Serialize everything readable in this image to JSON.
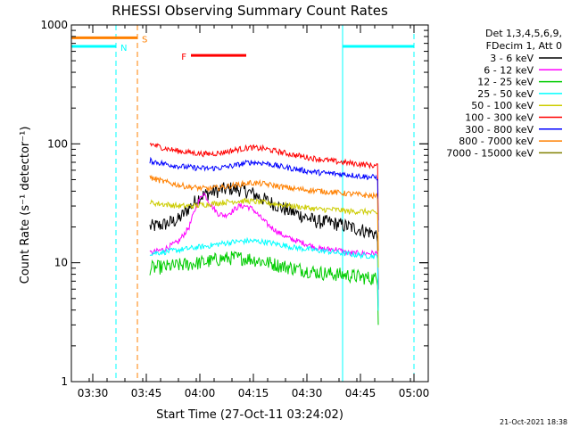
{
  "chart_data": {
    "type": "line",
    "title": "RHESSI Observing Summary Count Rates",
    "xlabel": "Start Time (27-Oct-11 03:24:02)",
    "ylabel": "Count Rate (s⁻¹ detector⁻¹)",
    "x_unit": "minutes after 03:24:02",
    "xlim": [
      0,
      100
    ],
    "ylim": [
      1,
      1000
    ],
    "yscale": "log",
    "grid": false,
    "legend_position": "right",
    "legend_header": [
      "Det 1,3,4,5,6,9,",
      "FDecim 1, Att 0"
    ],
    "x_ticks": [
      {
        "x": 6,
        "label": "03:30"
      },
      {
        "x": 21,
        "label": "03:45"
      },
      {
        "x": 36,
        "label": "04:00"
      },
      {
        "x": 51,
        "label": "04:15"
      },
      {
        "x": 66,
        "label": "04:30"
      },
      {
        "x": 81,
        "label": "04:45"
      },
      {
        "x": 96,
        "label": "05:00"
      }
    ],
    "y_ticks": [
      {
        "y": 1,
        "label": "1"
      },
      {
        "y": 10,
        "label": "10"
      },
      {
        "y": 100,
        "label": "100"
      },
      {
        "y": 1000,
        "label": "1000"
      }
    ],
    "series": [
      {
        "name": "3 - 6 keV",
        "color": "#000000",
        "points": [
          [
            22,
            20
          ],
          [
            26,
            21
          ],
          [
            30,
            23
          ],
          [
            33,
            29
          ],
          [
            36,
            36
          ],
          [
            39,
            39
          ],
          [
            42,
            41
          ],
          [
            45,
            42
          ],
          [
            48,
            41
          ],
          [
            51,
            38
          ],
          [
            54,
            34
          ],
          [
            57,
            31
          ],
          [
            60,
            28
          ],
          [
            63,
            26
          ],
          [
            66,
            24
          ],
          [
            69,
            22
          ],
          [
            72,
            22
          ],
          [
            75,
            21
          ],
          [
            78,
            20
          ],
          [
            81,
            19
          ],
          [
            84,
            18
          ],
          [
            86,
            17
          ]
        ]
      },
      {
        "name": "6 - 12 keV",
        "color": "#ff00ff",
        "points": [
          [
            22,
            12
          ],
          [
            26,
            13
          ],
          [
            30,
            15
          ],
          [
            33,
            20
          ],
          [
            35,
            30
          ],
          [
            37,
            39
          ],
          [
            39,
            31
          ],
          [
            41,
            26
          ],
          [
            43,
            25
          ],
          [
            45,
            27
          ],
          [
            47,
            30
          ],
          [
            49,
            30
          ],
          [
            51,
            28
          ],
          [
            53,
            24
          ],
          [
            55,
            21
          ],
          [
            58,
            18
          ],
          [
            61,
            16
          ],
          [
            64,
            15
          ],
          [
            67,
            14
          ],
          [
            70,
            13
          ],
          [
            74,
            13
          ],
          [
            78,
            12
          ],
          [
            82,
            12
          ],
          [
            86,
            12
          ]
        ]
      },
      {
        "name": "12 - 25 keV",
        "color": "#00cc00",
        "points": [
          [
            22,
            9
          ],
          [
            26,
            9.2
          ],
          [
            30,
            9.5
          ],
          [
            34,
            9.8
          ],
          [
            38,
            10.2
          ],
          [
            42,
            10.8
          ],
          [
            46,
            11
          ],
          [
            50,
            10.8
          ],
          [
            54,
            10.2
          ],
          [
            58,
            9.5
          ],
          [
            62,
            9
          ],
          [
            66,
            8.6
          ],
          [
            70,
            8.2
          ],
          [
            74,
            8
          ],
          [
            78,
            7.8
          ],
          [
            82,
            7.5
          ],
          [
            86,
            7.3
          ]
        ]
      },
      {
        "name": "25 - 50 keV",
        "color": "#00ffff",
        "points": [
          [
            22,
            12
          ],
          [
            26,
            12.3
          ],
          [
            30,
            12.8
          ],
          [
            34,
            13.3
          ],
          [
            38,
            13.8
          ],
          [
            42,
            14.5
          ],
          [
            46,
            15
          ],
          [
            50,
            15.3
          ],
          [
            54,
            15
          ],
          [
            58,
            14.3
          ],
          [
            62,
            13.5
          ],
          [
            66,
            13
          ],
          [
            70,
            12.6
          ],
          [
            74,
            12.2
          ],
          [
            78,
            11.8
          ],
          [
            82,
            11.5
          ],
          [
            86,
            11.3
          ]
        ]
      },
      {
        "name": "50 - 100 keV",
        "color": "#cccc00",
        "points": [
          [
            22,
            32
          ],
          [
            26,
            31
          ],
          [
            30,
            30
          ],
          [
            34,
            30
          ],
          [
            38,
            31
          ],
          [
            42,
            32
          ],
          [
            46,
            33
          ],
          [
            50,
            33
          ],
          [
            54,
            32
          ],
          [
            58,
            31
          ],
          [
            62,
            30
          ],
          [
            66,
            29
          ],
          [
            70,
            28
          ],
          [
            74,
            28
          ],
          [
            78,
            27
          ],
          [
            82,
            27
          ],
          [
            86,
            26
          ]
        ]
      },
      {
        "name": "100 - 300 keV",
        "color": "#ff0000",
        "points": [
          [
            22,
            100
          ],
          [
            26,
            92
          ],
          [
            30,
            87
          ],
          [
            34,
            84
          ],
          [
            38,
            82
          ],
          [
            42,
            84
          ],
          [
            46,
            89
          ],
          [
            50,
            93
          ],
          [
            54,
            91
          ],
          [
            58,
            86
          ],
          [
            62,
            81
          ],
          [
            66,
            77
          ],
          [
            70,
            74
          ],
          [
            74,
            71
          ],
          [
            78,
            69
          ],
          [
            82,
            67
          ],
          [
            86,
            65
          ]
        ]
      },
      {
        "name": "300 - 800 keV",
        "color": "#0000ff",
        "points": [
          [
            22,
            72
          ],
          [
            26,
            68
          ],
          [
            30,
            65
          ],
          [
            34,
            63
          ],
          [
            38,
            62
          ],
          [
            42,
            63
          ],
          [
            46,
            66
          ],
          [
            50,
            70
          ],
          [
            54,
            69
          ],
          [
            58,
            65
          ],
          [
            62,
            62
          ],
          [
            66,
            59
          ],
          [
            70,
            57
          ],
          [
            74,
            56
          ],
          [
            78,
            55
          ],
          [
            82,
            53
          ],
          [
            86,
            52
          ]
        ]
      },
      {
        "name": "800 - 7000 keV",
        "color": "#ff8000",
        "points": [
          [
            22,
            52
          ],
          [
            26,
            48
          ],
          [
            30,
            45
          ],
          [
            34,
            43
          ],
          [
            38,
            42
          ],
          [
            42,
            43
          ],
          [
            46,
            45
          ],
          [
            50,
            47
          ],
          [
            54,
            46
          ],
          [
            58,
            44
          ],
          [
            62,
            42
          ],
          [
            66,
            41
          ],
          [
            70,
            40
          ],
          [
            74,
            39
          ],
          [
            78,
            38
          ],
          [
            82,
            37
          ],
          [
            86,
            36
          ]
        ]
      },
      {
        "name": "7000 - 15000 keV",
        "color": "#808000",
        "points": []
      }
    ],
    "annotations": [
      {
        "label": "S",
        "color": "#ff8000",
        "x_start": 0,
        "x_end": 18.5,
        "y": 780
      },
      {
        "label": "N",
        "color": "#00ffff",
        "x_start": 0,
        "x_end": 12.5,
        "y": 660
      },
      {
        "label": "N",
        "color": "#00ffff",
        "x_start": 76,
        "x_end": 96,
        "y": 660
      },
      {
        "label": "F",
        "color": "#ff0000",
        "x_start": 33.5,
        "x_end": 49,
        "y": 555
      }
    ],
    "vertical_markers": [
      {
        "x": 12.5,
        "color": "#00ffff",
        "style": "dashed"
      },
      {
        "x": 18.5,
        "color": "#ff8000",
        "style": "dashed"
      },
      {
        "x": 76,
        "color": "#00ffff",
        "style": "solid"
      },
      {
        "x": 96,
        "color": "#00ffff",
        "style": "dashed"
      }
    ]
  },
  "footer": {
    "timestamp": "21-Oct-2021 18:38"
  }
}
